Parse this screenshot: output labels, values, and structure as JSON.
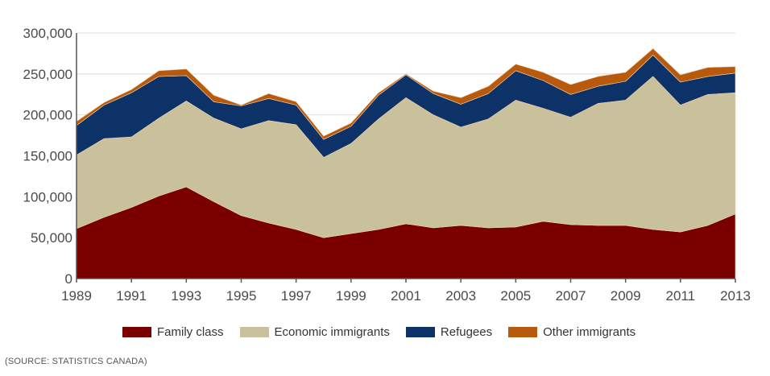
{
  "chart_data": {
    "type": "area",
    "stacked": true,
    "title": "",
    "xlabel": "",
    "ylabel": "",
    "x": [
      1989,
      1990,
      1991,
      1992,
      1993,
      1994,
      1995,
      1996,
      1997,
      1998,
      1999,
      2000,
      2001,
      2002,
      2003,
      2004,
      2005,
      2006,
      2007,
      2008,
      2009,
      2010,
      2011,
      2012,
      2013
    ],
    "xticks": [
      "1989",
      "1991",
      "1993",
      "1995",
      "1997",
      "1999",
      "2001",
      "2003",
      "2005",
      "2007",
      "2009",
      "2011",
      "2013"
    ],
    "yticks": [
      "0",
      "50,000",
      "100,000",
      "150,000",
      "200,000",
      "250,000",
      "300,000"
    ],
    "ylim": [
      0,
      300000
    ],
    "xlim": [
      1989,
      2013
    ],
    "grid": "horizontal",
    "legend_position": "bottom",
    "series": [
      {
        "name": "Family class",
        "color": "#7a0000",
        "values": [
          61000,
          75000,
          87000,
          101000,
          112000,
          94000,
          77000,
          68000,
          60000,
          50000,
          55000,
          60000,
          67000,
          62000,
          65000,
          62000,
          63000,
          70000,
          66000,
          65000,
          65000,
          60000,
          57000,
          65000,
          79000
        ]
      },
      {
        "name": "Economic immigrants",
        "color": "#c8c19b",
        "values": [
          90000,
          96000,
          86000,
          95000,
          105000,
          102000,
          106000,
          125000,
          128000,
          98000,
          110000,
          135000,
          154000,
          138000,
          120000,
          133000,
          155000,
          138000,
          131000,
          149000,
          153000,
          187000,
          155000,
          160000,
          148000
        ]
      },
      {
        "name": "Refugees",
        "color": "#0d3268",
        "values": [
          36000,
          41000,
          54000,
          51000,
          31000,
          20000,
          28000,
          27000,
          24000,
          22000,
          21000,
          29000,
          28000,
          26000,
          28000,
          31000,
          36000,
          34000,
          28000,
          21000,
          23000,
          26000,
          28000,
          22000,
          24000
        ]
      },
      {
        "name": "Other immigrants",
        "color": "#b85a0e",
        "values": [
          5000,
          3000,
          4000,
          7000,
          8000,
          8000,
          1000,
          6000,
          4000,
          4000,
          4000,
          3000,
          1000,
          3000,
          8000,
          9000,
          8000,
          10000,
          12000,
          12000,
          11000,
          8000,
          9000,
          11000,
          8000
        ]
      }
    ]
  },
  "legend": [
    {
      "label": "Family class",
      "color": "#7a0000"
    },
    {
      "label": "Economic immigrants",
      "color": "#c8c19b"
    },
    {
      "label": "Refugees",
      "color": "#0d3268"
    },
    {
      "label": "Other immigrants",
      "color": "#b85a0e"
    }
  ],
  "source": "(SOURCE: STATISTICS CANADA)"
}
